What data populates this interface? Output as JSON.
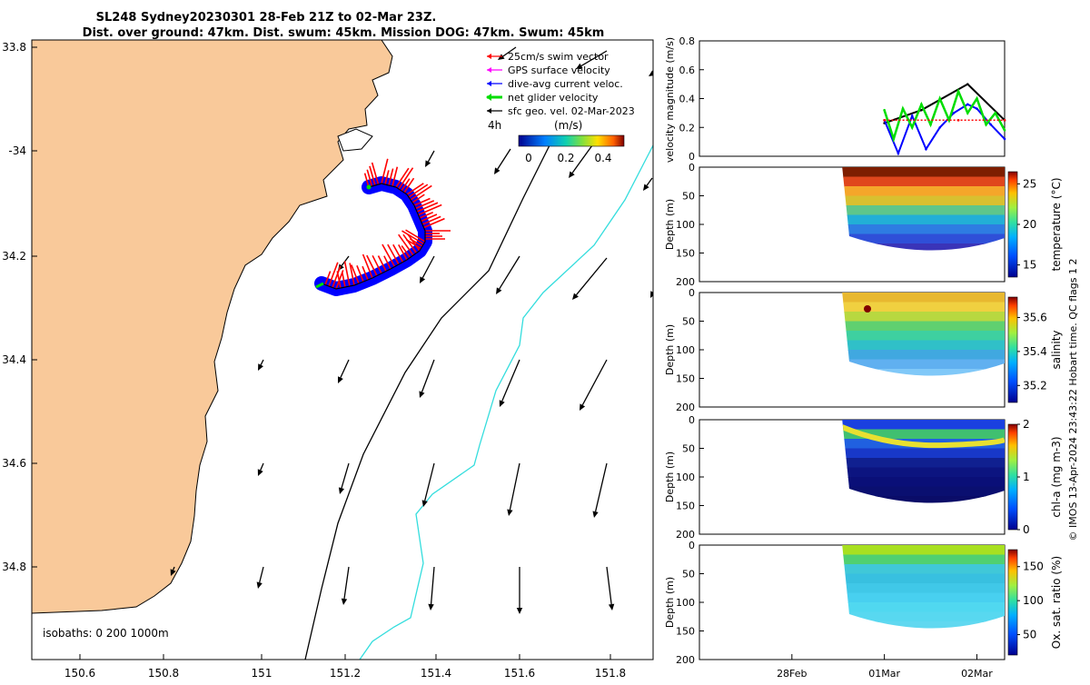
{
  "header": {
    "line1": "SL248 Sydney20230301 28-Feb 21Z to 02-Mar 23Z.",
    "line2": "Dist. over ground: 47km. Dist. swum: 45km. Mission DOG: 47km. Swum: 45km"
  },
  "colors": {
    "land": "#F9C99A",
    "glider_red": "#FF0000",
    "glider_blue": "#0000FF",
    "glider_green": "#00DD00",
    "isobath_200": "#000000",
    "isobath_1000": "#33DDDD",
    "vector": "#000000"
  },
  "map": {
    "lon_ticks": [
      "150.6",
      "150.8",
      "151",
      "151.2",
      "151.4",
      "151.6",
      "151.8"
    ],
    "lat_ticks": [
      "33.8",
      "-34",
      "34.2",
      "34.4",
      "34.6",
      "34.8"
    ],
    "lon_range": [
      150.45,
      151.92
    ],
    "lat_range": [
      -33.78,
      -34.98
    ],
    "legend": [
      {
        "label": "25cm/s swim vector",
        "color": "#FF0000"
      },
      {
        "label": "GPS surface velocity",
        "color": "#FF00FF"
      },
      {
        "label": "dive-avg current veloc.",
        "color": "#0000FF"
      },
      {
        "label": "net glider velocity",
        "color": "#00DD00"
      },
      {
        "label": "sfc geo. vel. 02-Mar-2023",
        "color": "#000000"
      }
    ],
    "scale_text": "4h",
    "colorbar_title": "(m/s)",
    "colorbar_ticks": [
      "0",
      "0.2",
      "0.4"
    ],
    "isobath_label": "isobaths: 0   200 1000m"
  },
  "chart_data": [
    {
      "type": "line",
      "title": "velocity magnitude",
      "ylabel": "velocity magnitude (m/s)",
      "ylim": [
        0,
        0.8
      ],
      "yticks": [
        "0",
        "0.2",
        "0.4",
        "0.6",
        "0.8"
      ],
      "xlim_days": [
        0,
        3.3
      ],
      "xtick_labels": [
        "28Feb",
        "01Mar",
        "02Mar"
      ],
      "xtick_days": [
        1,
        2,
        3
      ],
      "series": [
        {
          "name": "sfc geo. vel.",
          "color": "#000000",
          "x": [
            2.0,
            2.4,
            2.9,
            3.3
          ],
          "values": [
            0.23,
            0.32,
            0.5,
            0.25
          ]
        },
        {
          "name": "dive-avg current",
          "color": "#0000FF",
          "x": [
            2.0,
            2.15,
            2.3,
            2.45,
            2.6,
            2.75,
            2.9,
            3.0,
            3.15,
            3.3
          ],
          "values": [
            0.25,
            0.02,
            0.28,
            0.05,
            0.2,
            0.3,
            0.36,
            0.33,
            0.22,
            0.12
          ]
        },
        {
          "name": "net glider velocity",
          "color": "#00DD00",
          "x": [
            2.0,
            2.1,
            2.2,
            2.3,
            2.4,
            2.5,
            2.6,
            2.7,
            2.8,
            2.9,
            3.0,
            3.1,
            3.2,
            3.3
          ],
          "values": [
            0.32,
            0.12,
            0.33,
            0.2,
            0.36,
            0.22,
            0.4,
            0.25,
            0.45,
            0.3,
            0.4,
            0.22,
            0.3,
            0.18
          ]
        },
        {
          "name": "swim speed",
          "color": "#FF0000",
          "x": [
            2.0,
            2.8,
            3.3
          ],
          "values": [
            0.25,
            0.25,
            0.25
          ]
        }
      ]
    },
    {
      "type": "heatmap",
      "ylabel": "Depth (m)",
      "clabel": "temperature (°C)",
      "ylim": [
        0,
        200
      ],
      "yticks": [
        "0",
        "50",
        "100",
        "150",
        "200"
      ],
      "cticks": [
        "15",
        "20",
        "25"
      ],
      "crange": [
        13.5,
        26.5
      ],
      "palette": "parula"
    },
    {
      "type": "heatmap",
      "ylabel": "Depth (m)",
      "clabel": "salinity",
      "ylim": [
        0,
        200
      ],
      "yticks": [
        "0",
        "50",
        "100",
        "150",
        "200"
      ],
      "cticks": [
        "35.2",
        "35.4",
        "35.6"
      ],
      "crange": [
        35.1,
        35.72
      ],
      "palette": "parula"
    },
    {
      "type": "heatmap",
      "ylabel": "Depth (m)",
      "clabel": "chl-a (mg m-3)",
      "ylim": [
        0,
        200
      ],
      "yticks": [
        "0",
        "50",
        "100",
        "150",
        "200"
      ],
      "cticks": [
        "0",
        "1",
        "2"
      ],
      "crange": [
        0,
        2
      ],
      "palette": "parula"
    },
    {
      "type": "heatmap",
      "ylabel": "Depth (m)",
      "clabel": "Ox. sat. ratio (%)",
      "ylim": [
        0,
        200
      ],
      "yticks": [
        "0",
        "50",
        "100",
        "150",
        "200"
      ],
      "cticks": [
        "50",
        "100",
        "150"
      ],
      "crange": [
        20,
        175
      ],
      "palette": "parula"
    }
  ],
  "footer": {
    "credit": "© IMOS 13-Apr-2024 23:43:22 Hobart time. QC flags 1  2"
  }
}
